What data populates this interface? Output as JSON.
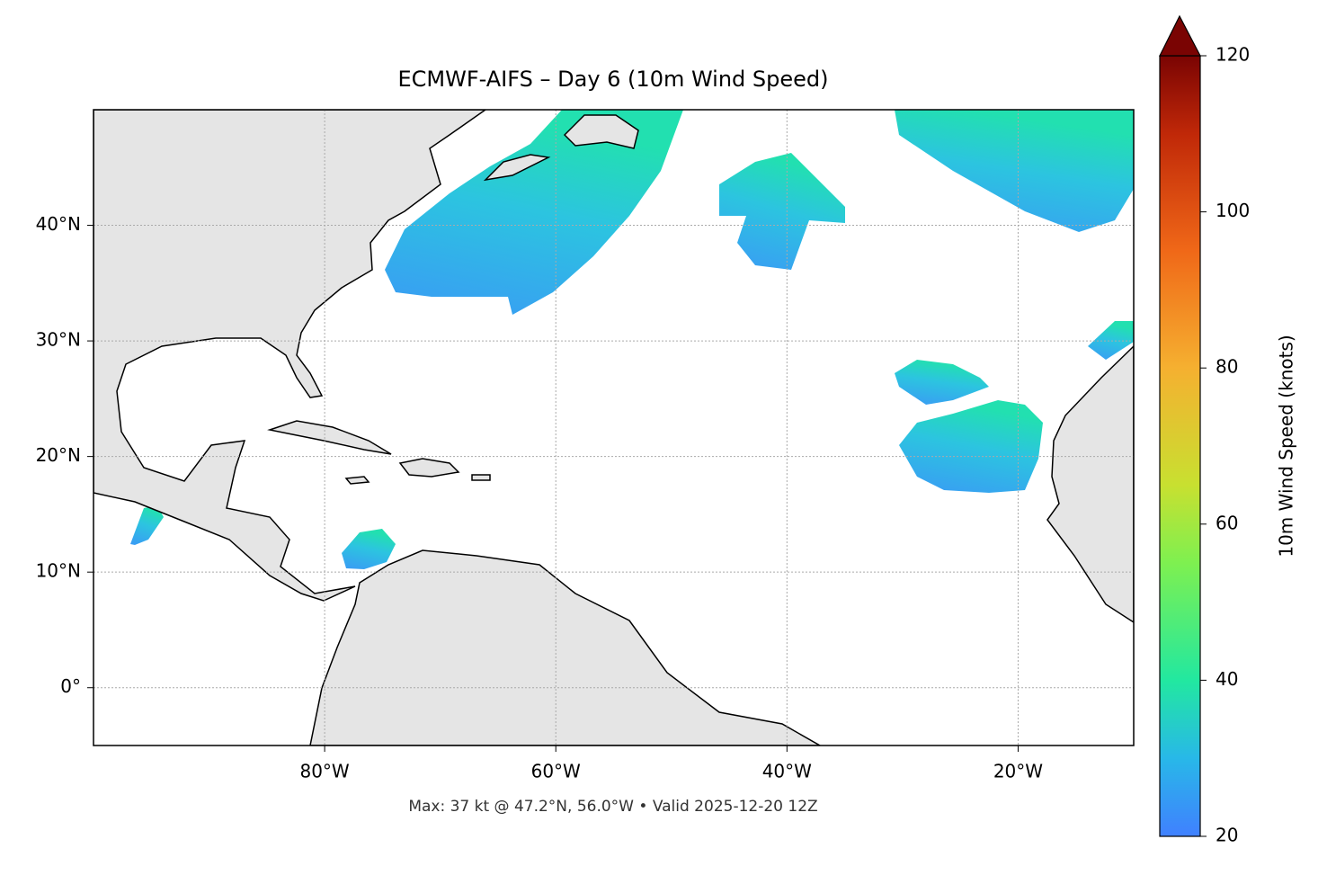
{
  "chart_data": {
    "type": "map",
    "title": "ECMWF-AIFS – Day 6 (10m Wind Speed)",
    "footnote": "Max: 37 kt @ 47.2°N, 56.0°W • Valid 2025-12-20 12Z",
    "xlim": [
      -100,
      -10
    ],
    "ylim": [
      -5,
      50
    ],
    "xticks": [
      {
        "value": -80,
        "label": "80°W"
      },
      {
        "value": -60,
        "label": "60°W"
      },
      {
        "value": -40,
        "label": "40°W"
      },
      {
        "value": -20,
        "label": "20°W"
      }
    ],
    "yticks": [
      {
        "value": 0,
        "label": "0°"
      },
      {
        "value": 10,
        "label": "10°N"
      },
      {
        "value": 20,
        "label": "20°N"
      },
      {
        "value": 30,
        "label": "30°N"
      },
      {
        "value": 40,
        "label": "40°N"
      }
    ],
    "grid": true,
    "colorbar": {
      "label": "10m Wind Speed (knots)",
      "lim": [
        20,
        120
      ],
      "ticks": [
        20,
        40,
        60,
        80,
        100,
        120
      ]
    }
  }
}
